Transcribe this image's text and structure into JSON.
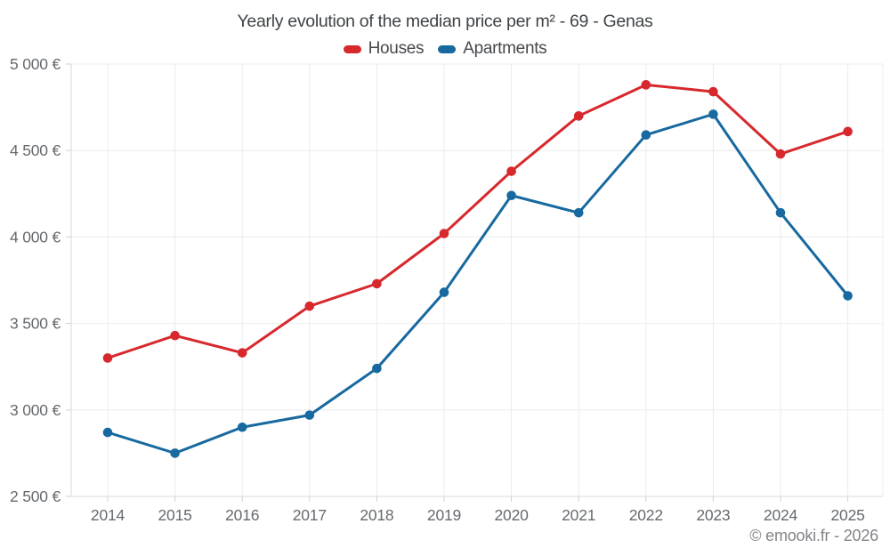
{
  "chart_data": {
    "type": "line",
    "title": "Yearly evolution of the median price per m² - 69 - Genas",
    "categories": [
      "2014",
      "2015",
      "2016",
      "2017",
      "2018",
      "2019",
      "2020",
      "2021",
      "2022",
      "2023",
      "2024",
      "2025"
    ],
    "series": [
      {
        "name": "Houses",
        "color": "#d7282d",
        "values": [
          3300,
          3430,
          3330,
          3600,
          3730,
          4020,
          4380,
          4700,
          4880,
          4840,
          4480,
          4610
        ]
      },
      {
        "name": "Apartments",
        "color": "#17699f",
        "values": [
          2870,
          2750,
          2900,
          2970,
          3240,
          3680,
          4240,
          4140,
          4590,
          4710,
          4140,
          3660
        ]
      }
    ],
    "y_axis": {
      "tick_values": [
        5000,
        4500,
        4000,
        3500,
        3000,
        2500
      ],
      "tick_labels": [
        "5 000 €",
        "4 500 €",
        "4 000 €",
        "3 500 €",
        "3 000 €",
        "2 500 €"
      ],
      "ylim": [
        2500,
        5000
      ]
    },
    "grid": true,
    "legend_position": "top",
    "xlabel": "",
    "ylabel": ""
  },
  "watermark": "© emooki.fr - 2026"
}
